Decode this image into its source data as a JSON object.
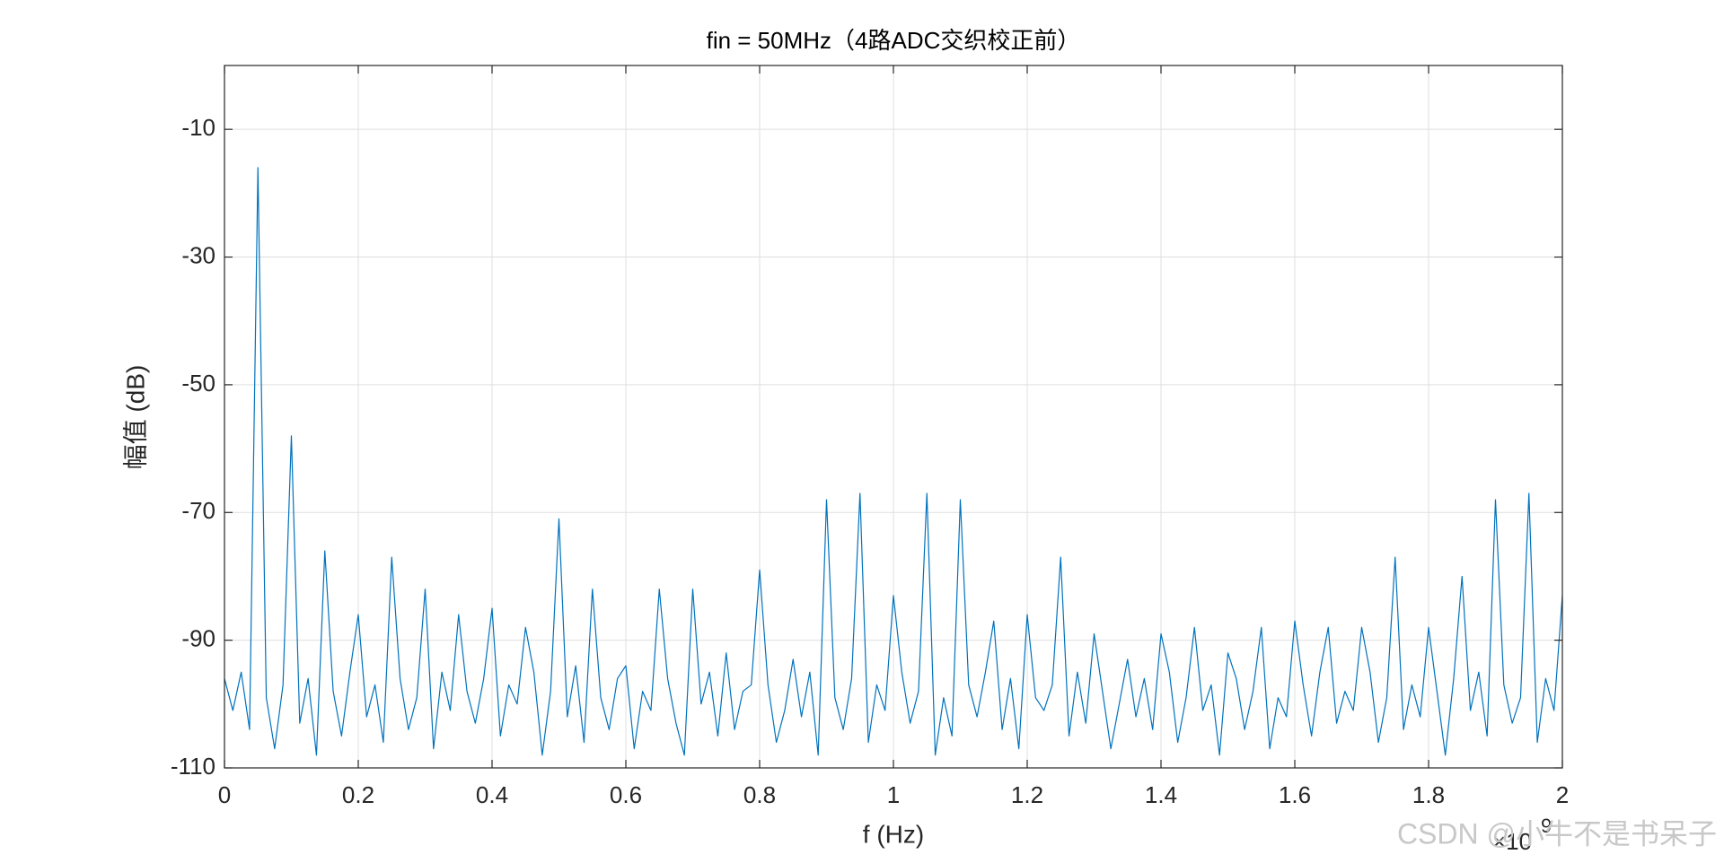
{
  "chart_data": {
    "type": "line",
    "title": "fin = 50MHz（4路ADC交织校正前）",
    "x_label": "f (Hz)",
    "y_label": "幅值 (dB)",
    "x_multiplier": "×10",
    "x_exponent": "9",
    "watermark": "CSDN @小牛不是书呆子",
    "color": "#0072bd",
    "grid": true,
    "xlim": [
      0,
      2
    ],
    "ylim": [
      -110,
      0
    ],
    "xticks": [
      0,
      0.2,
      0.4,
      0.6,
      0.8,
      1,
      1.2,
      1.4,
      1.6,
      1.8,
      2
    ],
    "yticks": [
      -110,
      -90,
      -70,
      -50,
      -30,
      -10
    ],
    "x": [
      0,
      0.0125,
      0.025,
      0.0375,
      0.05,
      0.0625,
      0.075,
      0.0875,
      0.1,
      0.1125,
      0.125,
      0.1375,
      0.15,
      0.1625,
      0.175,
      0.1875,
      0.2,
      0.2125,
      0.225,
      0.2375,
      0.25,
      0.2625,
      0.275,
      0.2875,
      0.3,
      0.3125,
      0.325,
      0.3375,
      0.35,
      0.3625,
      0.375,
      0.3875,
      0.4,
      0.4125,
      0.425,
      0.4375,
      0.45,
      0.4625,
      0.475,
      0.4875,
      0.5,
      0.5125,
      0.525,
      0.5375,
      0.55,
      0.5625,
      0.575,
      0.5875,
      0.6,
      0.6125,
      0.625,
      0.6375,
      0.65,
      0.6625,
      0.675,
      0.6875,
      0.7,
      0.7125,
      0.725,
      0.7375,
      0.75,
      0.7625,
      0.775,
      0.7875,
      0.8,
      0.8125,
      0.825,
      0.8375,
      0.85,
      0.8625,
      0.875,
      0.8875,
      0.9,
      0.9125,
      0.925,
      0.9375,
      0.95,
      0.9625,
      0.975,
      0.9875,
      1,
      1.0125,
      1.025,
      1.0375,
      1.05,
      1.0625,
      1.075,
      1.0875,
      1.1,
      1.1125,
      1.125,
      1.1375,
      1.15,
      1.1625,
      1.175,
      1.1875,
      1.2,
      1.2125,
      1.225,
      1.2375,
      1.25,
      1.2625,
      1.275,
      1.2875,
      1.3,
      1.3125,
      1.325,
      1.3375,
      1.35,
      1.3625,
      1.375,
      1.3875,
      1.4,
      1.4125,
      1.425,
      1.4375,
      1.45,
      1.4625,
      1.475,
      1.4875,
      1.5,
      1.5125,
      1.525,
      1.5375,
      1.55,
      1.5625,
      1.575,
      1.5875,
      1.6,
      1.6125,
      1.625,
      1.6375,
      1.65,
      1.6625,
      1.675,
      1.6875,
      1.7,
      1.7125,
      1.725,
      1.7375,
      1.75,
      1.7625,
      1.775,
      1.7875,
      1.8,
      1.8125,
      1.825,
      1.8375,
      1.85,
      1.8625,
      1.875,
      1.8875,
      1.9,
      1.9125,
      1.925,
      1.9375,
      1.95,
      1.9625,
      1.975,
      1.9875,
      2
    ],
    "values": [
      -96,
      -101,
      -95,
      -104,
      -16,
      -99,
      -107,
      -97,
      -58,
      -103,
      -96,
      -108,
      -76,
      -98,
      -105,
      -95,
      -86,
      -102,
      -97,
      -106,
      -77,
      -96,
      -104,
      -99,
      -82,
      -107,
      -95,
      -101,
      -86,
      -98,
      -103,
      -96,
      -85,
      -105,
      -97,
      -100,
      -88,
      -95,
      -108,
      -98,
      -71,
      -102,
      -94,
      -106,
      -82,
      -99,
      -104,
      -96,
      -94,
      -107,
      -98,
      -101,
      -82,
      -96,
      -103,
      -108,
      -82,
      -100,
      -95,
      -105,
      -92,
      -104,
      -98,
      -97,
      -79,
      -97,
      -106,
      -101,
      -93,
      -102,
      -95,
      -108,
      -68,
      -99,
      -104,
      -96,
      -67,
      -106,
      -97,
      -101,
      -83,
      -95,
      -103,
      -98,
      -67,
      -108,
      -99,
      -105,
      -68,
      -97,
      -102,
      -95,
      -87,
      -104,
      -96,
      -107,
      -86,
      -99,
      -101,
      -97,
      -77,
      -105,
      -95,
      -103,
      -89,
      -98,
      -107,
      -100,
      -93,
      -102,
      -96,
      -104,
      -89,
      -95,
      -106,
      -99,
      -88,
      -101,
      -97,
      -108,
      -92,
      -96,
      -104,
      -98,
      -88,
      -107,
      -99,
      -102,
      -87,
      -97,
      -105,
      -95,
      -88,
      -103,
      -98,
      -101,
      -88,
      -95,
      -106,
      -99,
      -77,
      -104,
      -97,
      -102,
      -88,
      -98,
      -108,
      -96,
      -80,
      -101,
      -95,
      -105,
      -68,
      -97,
      -103,
      -99,
      -67,
      -106,
      -96,
      -101,
      -83
    ]
  }
}
